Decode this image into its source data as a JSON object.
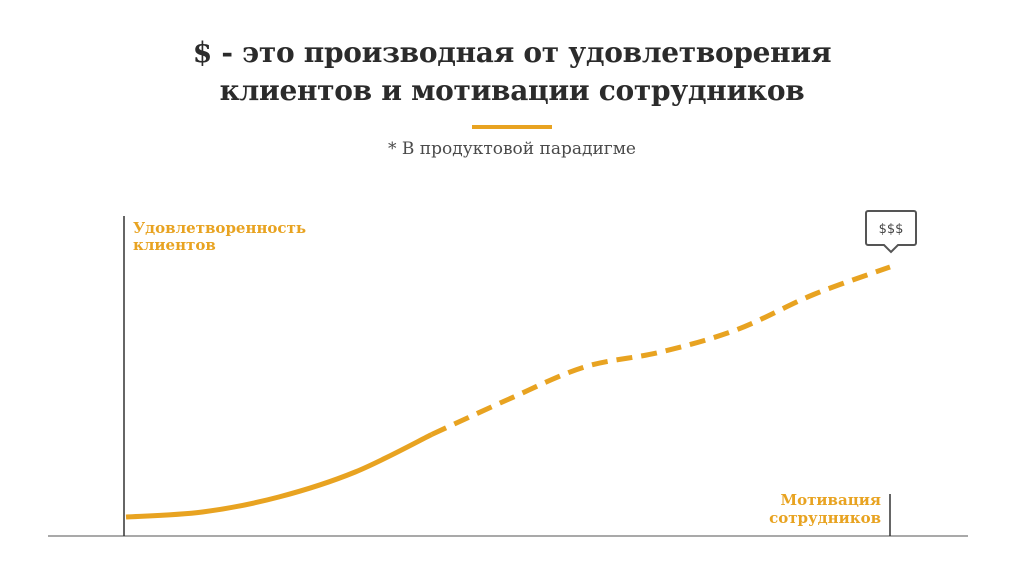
{
  "title": {
    "line1": "$ - это производная от удовлетворения",
    "line2": "клиентов и мотивации сотрудников"
  },
  "subtitle": "* В продуктовой парадигме",
  "colors": {
    "accent": "#e8a321",
    "axis": "#333333",
    "baseline": "#a9a9a9",
    "title": "#2b2b2b"
  },
  "chart_data": {
    "type": "line",
    "ylabel": [
      "Удовлетворенность",
      "клиентов"
    ],
    "xlabel": [
      "Мотивация",
      "сотрудников"
    ],
    "annotation": "$$$",
    "grid": false,
    "series": [
      {
        "x": [
          0,
          0.1,
          0.2,
          0.3,
          0.4,
          0.5,
          0.6,
          0.7,
          0.8,
          0.9,
          1.0
        ],
        "y": [
          0.0,
          0.02,
          0.08,
          0.18,
          0.33,
          0.47,
          0.6,
          0.66,
          0.75,
          0.89,
          1.0
        ],
        "solid_until_x": 0.4,
        "dashed_from_x": 0.4
      }
    ]
  }
}
